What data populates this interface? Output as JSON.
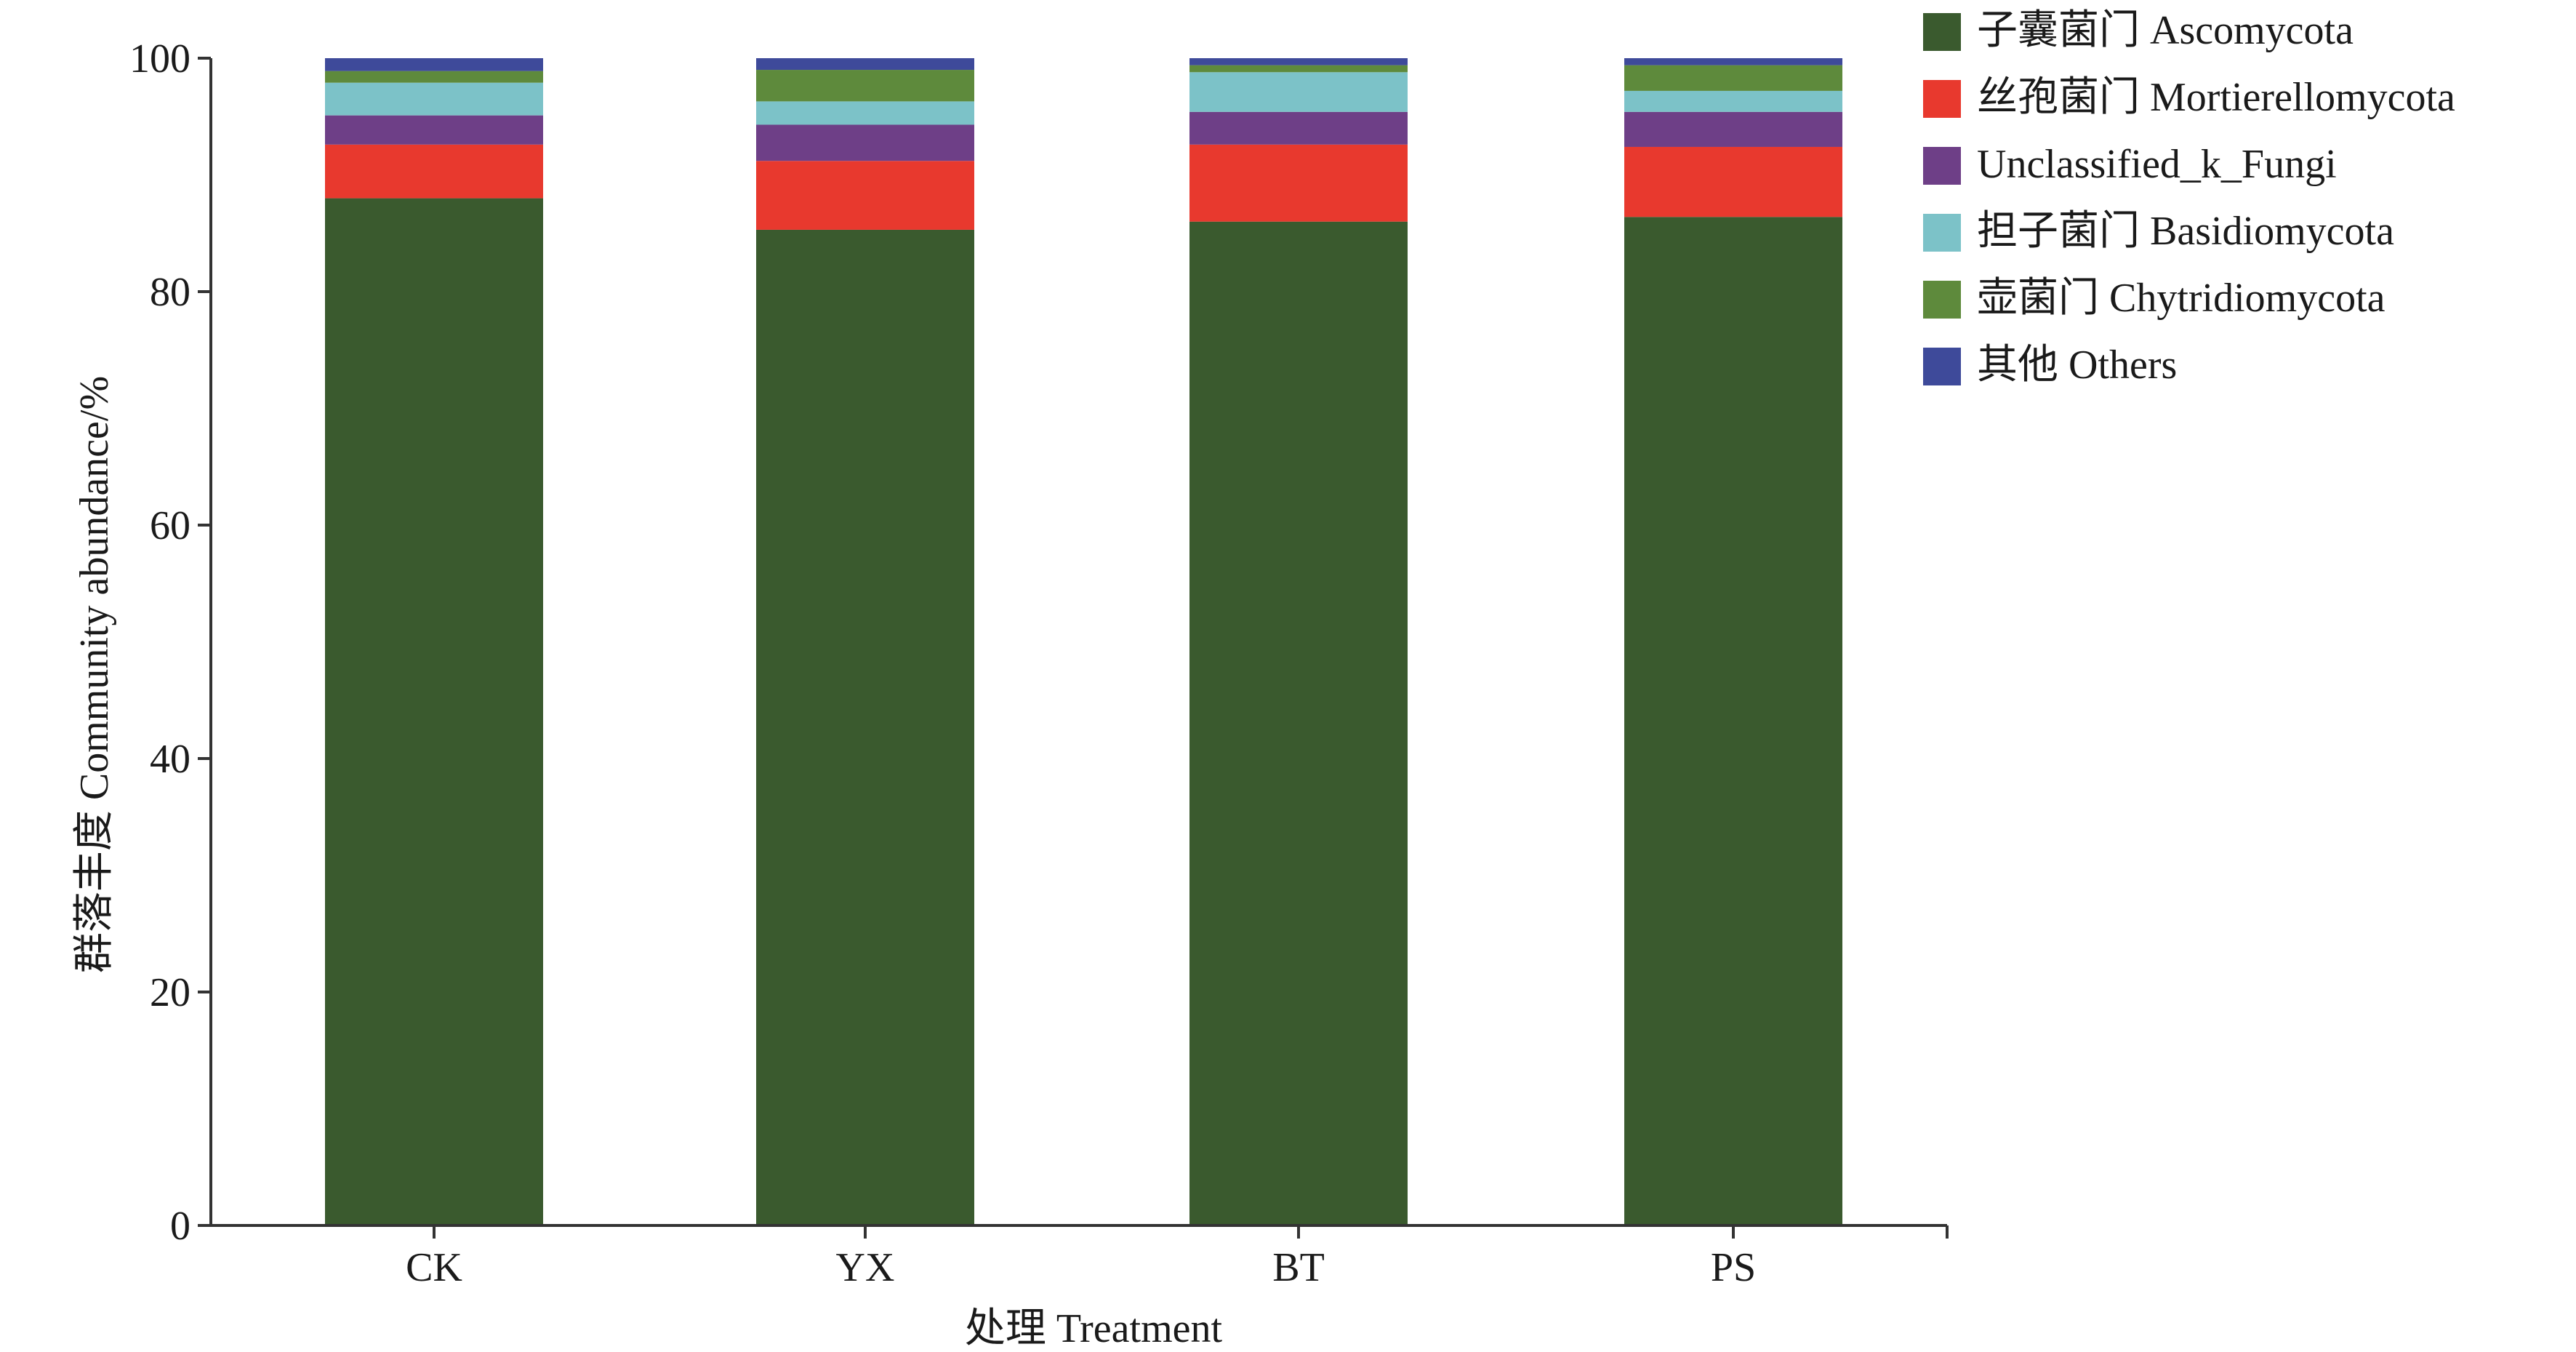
{
  "chart_data": {
    "type": "bar",
    "stacked": true,
    "xlabel": "处理 Treatment",
    "ylabel": "群落丰度 Community abundance/%",
    "ylim": [
      0,
      100
    ],
    "yticks": [
      "0",
      "20",
      "40",
      "60",
      "80",
      "100"
    ],
    "categories": [
      "CK",
      "YX",
      "BT",
      "PS"
    ],
    "legend_position": "top-right",
    "grid": false,
    "series": [
      {
        "name": "子囊菌门 Ascomycota",
        "color": "#3a5a2e",
        "values": [
          88.0,
          85.3,
          86.0,
          86.4
        ]
      },
      {
        "name": "丝孢菌门 Mortierellomycota",
        "color": "#e8392e",
        "values": [
          4.6,
          5.9,
          6.6,
          6.0
        ]
      },
      {
        "name": "Unclassified_k_Fungi",
        "color": "#6e3f87",
        "values": [
          2.5,
          3.1,
          2.8,
          3.0
        ]
      },
      {
        "name": "担子菌门 Basidiomycota",
        "color": "#7cc2c8",
        "values": [
          2.8,
          2.0,
          3.4,
          1.8
        ]
      },
      {
        "name": "壶菌门 Chytridiomycota",
        "color": "#5e8a3c",
        "values": [
          1.0,
          2.7,
          0.6,
          2.2
        ]
      },
      {
        "name": "其他 Others",
        "color": "#3e4a9a",
        "values": [
          1.1,
          1.0,
          0.6,
          0.6
        ]
      }
    ]
  }
}
